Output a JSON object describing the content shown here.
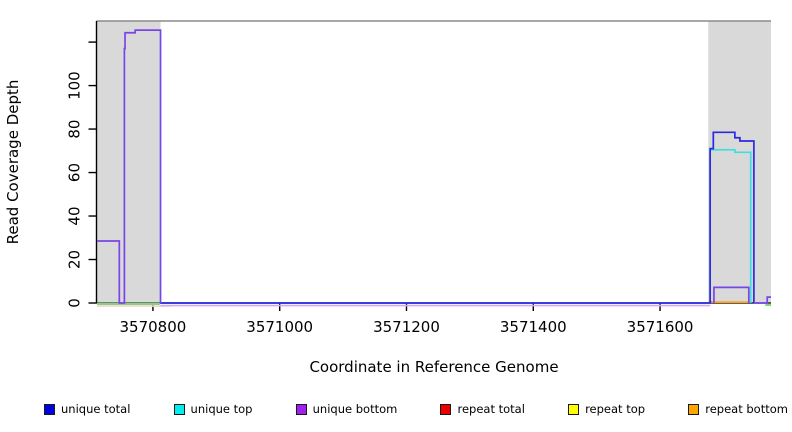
{
  "chart_data": {
    "type": "line",
    "title": "",
    "xlabel": "Coordinate in Reference Genome",
    "ylabel": "Read Coverage Depth",
    "xlim": [
      3570711,
      3571775
    ],
    "ylim": [
      0,
      129.7
    ],
    "x_tick_values": [
      3570800,
      3571000,
      3571200,
      3571400,
      3571600
    ],
    "x_tick_labels": [
      "3570800",
      "3571000",
      "3571200",
      "3571400",
      "3571600"
    ],
    "y_tick_values": [
      0,
      20,
      40,
      60,
      80,
      100,
      120
    ],
    "y_tick_labels": [
      "0",
      "20",
      "40",
      "60",
      "80",
      "100",
      ""
    ],
    "grid": false,
    "legend_position": "bottom",
    "shaded_regions": [
      {
        "x0": 3570711,
        "x1": 3570812,
        "color": "#d9d9d9"
      },
      {
        "x0": 3571676,
        "x1": 3571775,
        "color": "#d9d9d9"
      }
    ],
    "series": [
      {
        "name": "unique total",
        "color": "#2a2ae0",
        "paths": [
          [
            [
              3570812,
              0
            ],
            [
              3571679,
              0
            ],
            [
              3571679,
              71
            ],
            [
              3571684,
              71
            ],
            [
              3571684,
              78.5
            ],
            [
              3571718,
              78.5
            ],
            [
              3571718,
              76
            ],
            [
              3571726,
              76
            ],
            [
              3571726,
              74.5
            ],
            [
              3571748,
              74.5
            ],
            [
              3571748,
              0
            ]
          ]
        ]
      },
      {
        "name": "unique top",
        "color": "#40dede",
        "paths": [
          [
            [
              3571679,
              0
            ],
            [
              3571679,
              70.5
            ],
            [
              3571718,
              70.5
            ],
            [
              3571718,
              69.3
            ],
            [
              3571743,
              69.3
            ],
            [
              3571743,
              0
            ]
          ]
        ]
      },
      {
        "name": "unique bottom",
        "color": "#7846e8",
        "paths": [
          [
            [
              3570712,
              28.5
            ],
            [
              3570747,
              28.5
            ],
            [
              3570747,
              0
            ],
            [
              3570755,
              0
            ],
            [
              3570755,
              117
            ],
            [
              3570756,
              117
            ],
            [
              3570756,
              124.3
            ],
            [
              3570772,
              124.3
            ],
            [
              3570772,
              125.5
            ],
            [
              3570812,
              125.5
            ],
            [
              3570812,
              0
            ]
          ],
          [
            [
              3571685,
              0
            ],
            [
              3571685,
              7.2
            ],
            [
              3571740,
              7.2
            ],
            [
              3571740,
              0
            ]
          ],
          [
            [
              3571748,
              0
            ],
            [
              3571769,
              0
            ],
            [
              3571769,
              2.7
            ],
            [
              3571775,
              2.7
            ]
          ]
        ]
      },
      {
        "name": "repeat total",
        "color": "#e03030",
        "paths": [
          [
            [
              3571677,
              0.6
            ],
            [
              3571681,
              0.6
            ]
          ]
        ]
      },
      {
        "name": "repeat top",
        "color": "#f2f200",
        "paths": []
      },
      {
        "name": "repeat bottom",
        "color": "#ffa126",
        "paths": [
          [
            [
              3571679,
              0.4
            ],
            [
              3571741,
              0.4
            ]
          ]
        ]
      }
    ],
    "baseline_artifacts": [
      {
        "name": "green-overlap-left",
        "color": "#84d084",
        "width": 2.2,
        "path": [
          [
            3570712,
            -0.4
          ],
          [
            3570811,
            -0.4
          ]
        ]
      },
      {
        "name": "pink-overlap-left",
        "color": "#f6d2c8",
        "width": 1.6,
        "path": [
          [
            3570712,
            -1.4
          ],
          [
            3570828,
            -1.4
          ]
        ]
      },
      {
        "name": "lavender-underline-mid",
        "color": "#d2a9f7",
        "width": 1.6,
        "path": [
          [
            3570812,
            -1.2
          ],
          [
            3571679,
            -1.2
          ]
        ]
      },
      {
        "name": "green-overlap-right",
        "color": "#84d084",
        "width": 2.6,
        "path": [
          [
            3571766,
            -0.8
          ],
          [
            3571775,
            -0.8
          ]
        ]
      }
    ],
    "frame": {
      "top_border_color": "#8c8c8c",
      "axis_color": "#000000"
    }
  },
  "legend": {
    "items": [
      {
        "label": "unique total",
        "color": "#0000e0"
      },
      {
        "label": "unique top",
        "color": "#00eeee"
      },
      {
        "label": "unique bottom",
        "color": "#a020f0"
      },
      {
        "label": "repeat total",
        "color": "#ee0000"
      },
      {
        "label": "repeat top",
        "color": "#ffff00"
      },
      {
        "label": "repeat bottom",
        "color": "#ffa500"
      }
    ]
  }
}
